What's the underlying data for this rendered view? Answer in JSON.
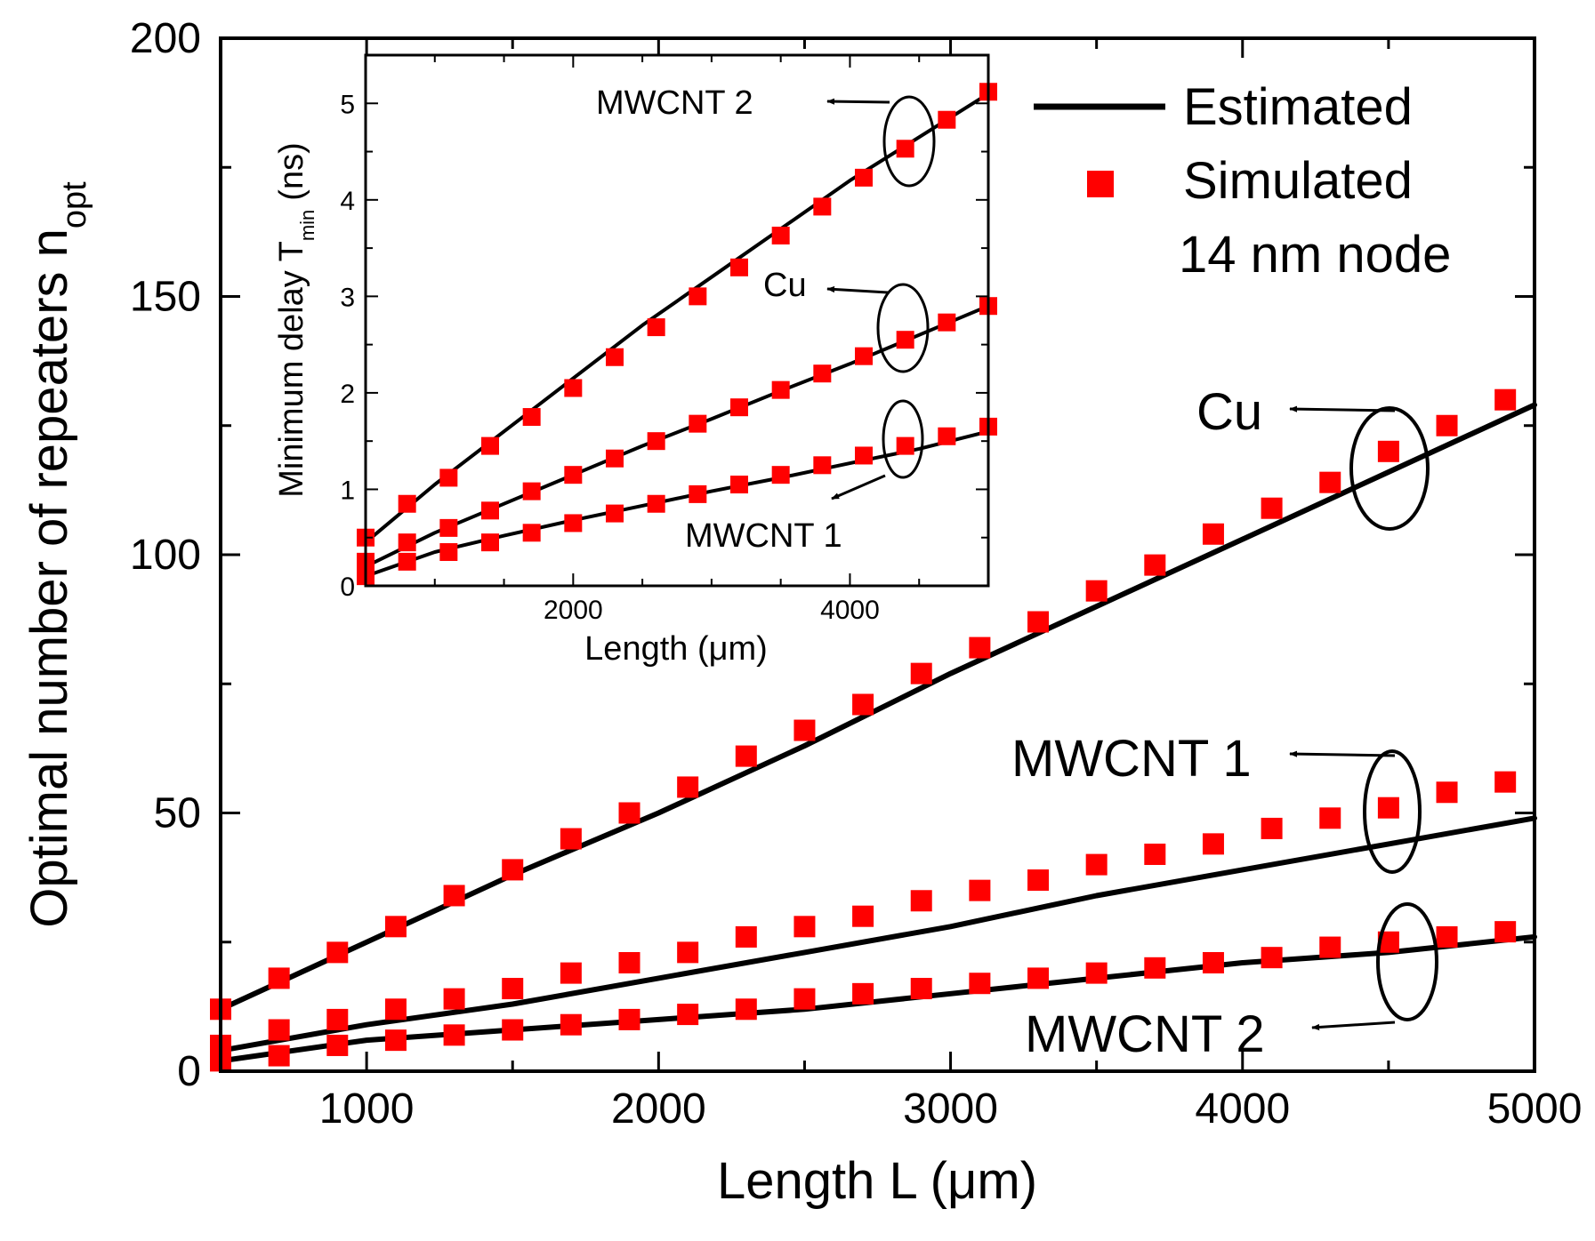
{
  "chart_data": [
    {
      "type": "line",
      "role": "main",
      "title": "",
      "xlabel": "Length L (μm)",
      "ylabel_main": "Optimal number of repeaters n",
      "ylabel_subscript": "opt",
      "xlim": [
        500,
        5000
      ],
      "ylim": [
        0,
        200
      ],
      "xticks": [
        1000,
        2000,
        3000,
        4000,
        5000
      ],
      "xtick_labels": [
        "1000",
        "2000",
        "3000",
        "4000",
        "5000"
      ],
      "yticks": [
        0,
        50,
        100,
        150,
        200
      ],
      "ytick_labels": [
        "0",
        "50",
        "100",
        "150",
        "200"
      ],
      "x_minor_ticks": [
        1500,
        2500,
        3500,
        4500
      ],
      "y_minor_ticks": [
        25,
        75,
        125,
        175
      ],
      "legend": {
        "position": "top-right",
        "entries": [
          {
            "label": "Estimated",
            "style": "line",
            "color": "#000000"
          },
          {
            "label": "Simulated",
            "style": "square-marker",
            "color": "#ff0000"
          }
        ],
        "note": "14 nm node"
      },
      "series": [
        {
          "name": "Cu",
          "estimated": {
            "x": [
              500,
              1000,
              1500,
              2000,
              2500,
              3000,
              3500,
              4000,
              4500,
              5000
            ],
            "y": [
              12,
              25,
              38,
              50,
              63,
              77,
              90,
              103,
              116,
              129
            ]
          },
          "simulated": {
            "x": [
              500,
              700,
              900,
              1100,
              1300,
              1500,
              1700,
              1900,
              2100,
              2300,
              2500,
              2700,
              2900,
              3100,
              3300,
              3500,
              3700,
              3900,
              4100,
              4300,
              4500,
              4700,
              4900
            ],
            "y": [
              12,
              18,
              23,
              28,
              34,
              39,
              45,
              50,
              55,
              61,
              66,
              71,
              77,
              82,
              87,
              93,
              98,
              104,
              109,
              114,
              120,
              125,
              130
            ]
          }
        },
        {
          "name": "MWCNT 1",
          "estimated": {
            "x": [
              500,
              1000,
              1500,
              2000,
              2500,
              3000,
              3500,
              4000,
              4500,
              5000
            ],
            "y": [
              4,
              9,
              13,
              18,
              23,
              28,
              34,
              39,
              44,
              49
            ]
          },
          "simulated": {
            "x": [
              500,
              700,
              900,
              1100,
              1300,
              1500,
              1700,
              1900,
              2100,
              2300,
              2500,
              2700,
              2900,
              3100,
              3300,
              3500,
              3700,
              3900,
              4100,
              4300,
              4500,
              4700,
              4900
            ],
            "y": [
              5,
              8,
              10,
              12,
              14,
              16,
              19,
              21,
              23,
              26,
              28,
              30,
              33,
              35,
              37,
              40,
              42,
              44,
              47,
              49,
              51,
              54,
              56
            ]
          }
        },
        {
          "name": "MWCNT 2",
          "estimated": {
            "x": [
              500,
              1000,
              1500,
              2000,
              2500,
              3000,
              3500,
              4000,
              4500,
              5000
            ],
            "y": [
              2,
              6,
              8,
              10,
              12,
              15,
              18,
              21,
              23,
              26
            ]
          },
          "simulated": {
            "x": [
              500,
              700,
              900,
              1100,
              1300,
              1500,
              1700,
              1900,
              2100,
              2300,
              2500,
              2700,
              2900,
              3100,
              3300,
              3500,
              3700,
              3900,
              4100,
              4300,
              4500,
              4700,
              4900
            ],
            "y": [
              2,
              3,
              5,
              6,
              7,
              8,
              9,
              10,
              11,
              12,
              14,
              15,
              16,
              17,
              18,
              19,
              20,
              21,
              22,
              24,
              25,
              26,
              27
            ]
          }
        }
      ],
      "annotations": [
        {
          "text": "Cu",
          "points_to": "Cu"
        },
        {
          "text": "MWCNT 1",
          "points_to": "MWCNT 1"
        },
        {
          "text": "MWCNT 2",
          "points_to": "MWCNT 2"
        }
      ]
    },
    {
      "type": "line",
      "role": "inset",
      "title": "",
      "xlabel": "Length (μm)",
      "ylabel_main": "Minimum delay T",
      "ylabel_subscript": "min",
      "ylabel_suffix": "(ns)",
      "xlim": [
        500,
        5000
      ],
      "ylim": [
        0,
        5.5
      ],
      "xticks": [
        2000,
        4000
      ],
      "xtick_labels": [
        "2000",
        "4000"
      ],
      "yticks": [
        0,
        1,
        2,
        3,
        4,
        5
      ],
      "ytick_labels": [
        "0",
        "1",
        "2",
        "3",
        "4",
        "5"
      ],
      "x_minor_ticks": [
        1000,
        1500,
        2500,
        3000,
        3500,
        4500
      ],
      "y_minor_ticks": [
        0.5,
        1.5,
        2.5,
        3.5,
        4.5
      ],
      "series": [
        {
          "name": "MWCNT 2",
          "estimated": {
            "x": [
              500,
              1000,
              1500,
              2000,
              2500,
              3000,
              3500,
              4000,
              4500,
              5000
            ],
            "y": [
              0.45,
              1.05,
              1.6,
              2.15,
              2.7,
              3.2,
              3.7,
              4.2,
              4.65,
              5.1
            ]
          },
          "simulated": {
            "x": [
              500,
              800,
              1100,
              1400,
              1700,
              2000,
              2300,
              2600,
              2900,
              3200,
              3500,
              3800,
              4100,
              4400,
              4700,
              5000
            ],
            "y": [
              0.5,
              0.85,
              1.12,
              1.45,
              1.75,
              2.05,
              2.37,
              2.68,
              3.0,
              3.3,
              3.63,
              3.93,
              4.23,
              4.53,
              4.83,
              5.12
            ]
          }
        },
        {
          "name": "Cu",
          "estimated": {
            "x": [
              500,
              1000,
              1500,
              2000,
              2500,
              3000,
              3500,
              4000,
              4500,
              5000
            ],
            "y": [
              0.2,
              0.55,
              0.85,
              1.15,
              1.45,
              1.73,
              2.02,
              2.3,
              2.6,
              2.9
            ]
          },
          "simulated": {
            "x": [
              500,
              800,
              1100,
              1400,
              1700,
              2000,
              2300,
              2600,
              2900,
              3200,
              3500,
              3800,
              4100,
              4400,
              4700,
              5000
            ],
            "y": [
              0.25,
              0.45,
              0.6,
              0.78,
              0.98,
              1.15,
              1.32,
              1.5,
              1.68,
              1.85,
              2.03,
              2.2,
              2.38,
              2.55,
              2.73,
              2.9
            ]
          }
        },
        {
          "name": "MWCNT 1",
          "estimated": {
            "x": [
              500,
              1000,
              1500,
              2000,
              2500,
              3000,
              3500,
              4000,
              4500,
              5000
            ],
            "y": [
              0.1,
              0.35,
              0.52,
              0.68,
              0.83,
              0.98,
              1.12,
              1.27,
              1.42,
              1.6
            ]
          },
          "simulated": {
            "x": [
              500,
              800,
              1100,
              1400,
              1700,
              2000,
              2300,
              2600,
              2900,
              3200,
              3500,
              3800,
              4100,
              4400,
              4700,
              5000
            ],
            "y": [
              0.1,
              0.25,
              0.35,
              0.45,
              0.55,
              0.65,
              0.75,
              0.85,
              0.95,
              1.05,
              1.15,
              1.25,
              1.35,
              1.45,
              1.55,
              1.65
            ]
          }
        }
      ],
      "annotations": [
        {
          "text": "MWCNT 2",
          "points_to": "MWCNT 2"
        },
        {
          "text": "Cu",
          "points_to": "Cu"
        },
        {
          "text": "MWCNT 1",
          "points_to": "MWCNT 1"
        }
      ]
    }
  ]
}
